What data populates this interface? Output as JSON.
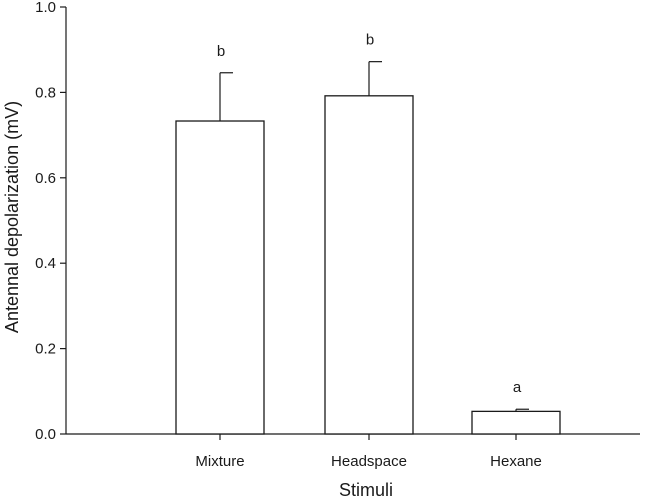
{
  "chart_data": {
    "type": "bar",
    "xlabel": "Stimuli",
    "ylabel": "Antennal depolarization (mV)",
    "categories": [
      "Mixture",
      "Headspace",
      "Hexane"
    ],
    "values": [
      0.733,
      0.792,
      0.053
    ],
    "error_upper": [
      0.846,
      0.872,
      0.058
    ],
    "significance_labels": [
      "b",
      "b",
      "a"
    ],
    "ylim": [
      0,
      1.0
    ],
    "yticks": [
      0.0,
      0.2,
      0.4,
      0.6,
      0.8,
      1.0
    ],
    "ytick_labels": [
      "0.0",
      "0.2",
      "0.4",
      "0.6",
      "0.8",
      "1.0"
    ],
    "grid": false,
    "legend": "none",
    "bar_fill": "#ffffff",
    "line_color": "#1a1a1a"
  }
}
